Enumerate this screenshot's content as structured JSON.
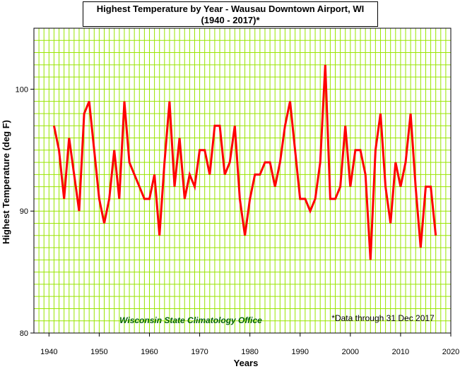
{
  "title": {
    "line1": "Highest Temperature by Year - Wausau Downtown Airport, WI",
    "line2": "(1940 - 2017)*"
  },
  "annotations": {
    "org": "Wisconsin State Climatology Office",
    "note": "*Data through 31 Dec 2017"
  },
  "colors": {
    "line": "#ff0000",
    "grid": "#99e600",
    "axis": "#000000",
    "org_text": "#006400"
  },
  "chart_data": {
    "type": "line",
    "title": "Highest Temperature by Year - Wausau Downtown Airport, WI (1940 - 2017)*",
    "xlabel": "Years",
    "ylabel": "Highest Temperature (deg F)",
    "xlim": [
      1937,
      2020
    ],
    "ylim": [
      80,
      105
    ],
    "x_ticks": [
      1940,
      1950,
      1960,
      1970,
      1980,
      1990,
      2000,
      2010,
      2020
    ],
    "y_ticks": [
      80,
      90,
      100
    ],
    "grid": true,
    "x_minor_step": 1,
    "y_minor_step": 1,
    "series": [
      {
        "name": "",
        "x": [
          1941,
          1942,
          1943,
          1944,
          1945,
          1946,
          1947,
          1948,
          1949,
          1950,
          1951,
          1952,
          1953,
          1954,
          1955,
          1956,
          1957,
          1958,
          1959,
          1960,
          1961,
          1962,
          1963,
          1964,
          1965,
          1966,
          1967,
          1968,
          1969,
          1970,
          1971,
          1972,
          1973,
          1974,
          1975,
          1976,
          1977,
          1978,
          1979,
          1980,
          1981,
          1982,
          1983,
          1984,
          1985,
          1986,
          1987,
          1988,
          1989,
          1990,
          1991,
          1992,
          1993,
          1994,
          1995,
          1996,
          1997,
          1998,
          1999,
          2000,
          2001,
          2002,
          2003,
          2004,
          2005,
          2006,
          2007,
          2008,
          2009,
          2010,
          2011,
          2012,
          2013,
          2014,
          2015,
          2016,
          2017
        ],
        "y": [
          97,
          95,
          91,
          96,
          93,
          90,
          98,
          99,
          95,
          91,
          89,
          91,
          95,
          91,
          99,
          94,
          93,
          92,
          91,
          91,
          93,
          88,
          94,
          99,
          92,
          96,
          91,
          93,
          92,
          95,
          95,
          93,
          97,
          97,
          93,
          94,
          97,
          91,
          88,
          91,
          93,
          93,
          94,
          94,
          92,
          94,
          97,
          99,
          95,
          91,
          91,
          90,
          91,
          94,
          102,
          91,
          91,
          92,
          97,
          92,
          95,
          95,
          93,
          86,
          95,
          98,
          92,
          89,
          94,
          92,
          94,
          98,
          92,
          87,
          92,
          92,
          88
        ]
      }
    ]
  }
}
